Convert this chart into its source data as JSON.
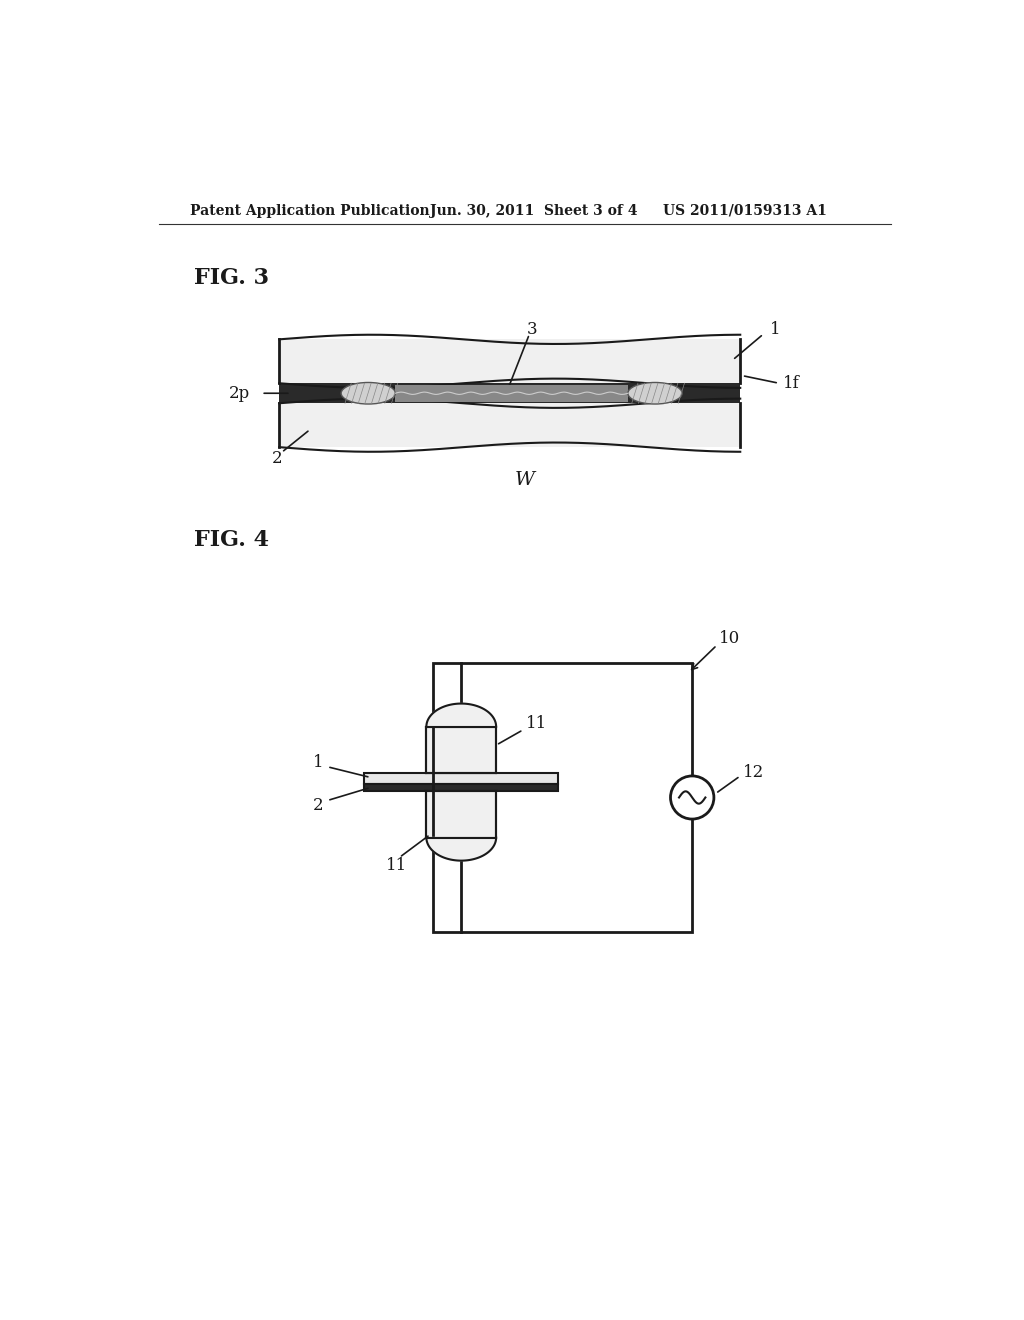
{
  "bg_color": "#ffffff",
  "header_text": "Patent Application Publication",
  "header_date": "Jun. 30, 2011  Sheet 3 of 4",
  "header_patent": "US 2011/0159313 A1",
  "fig3_label": "FIG. 3",
  "fig4_label": "FIG. 4",
  "label_W": "W",
  "label_3": "3",
  "label_1": "1",
  "label_1f": "1f",
  "label_2p": "2p",
  "label_2": "2",
  "label_10": "10",
  "label_11_top": "11",
  "label_11_bot": "11",
  "label_12": "12",
  "label_1_fig4": "1",
  "label_2_fig4": "2"
}
